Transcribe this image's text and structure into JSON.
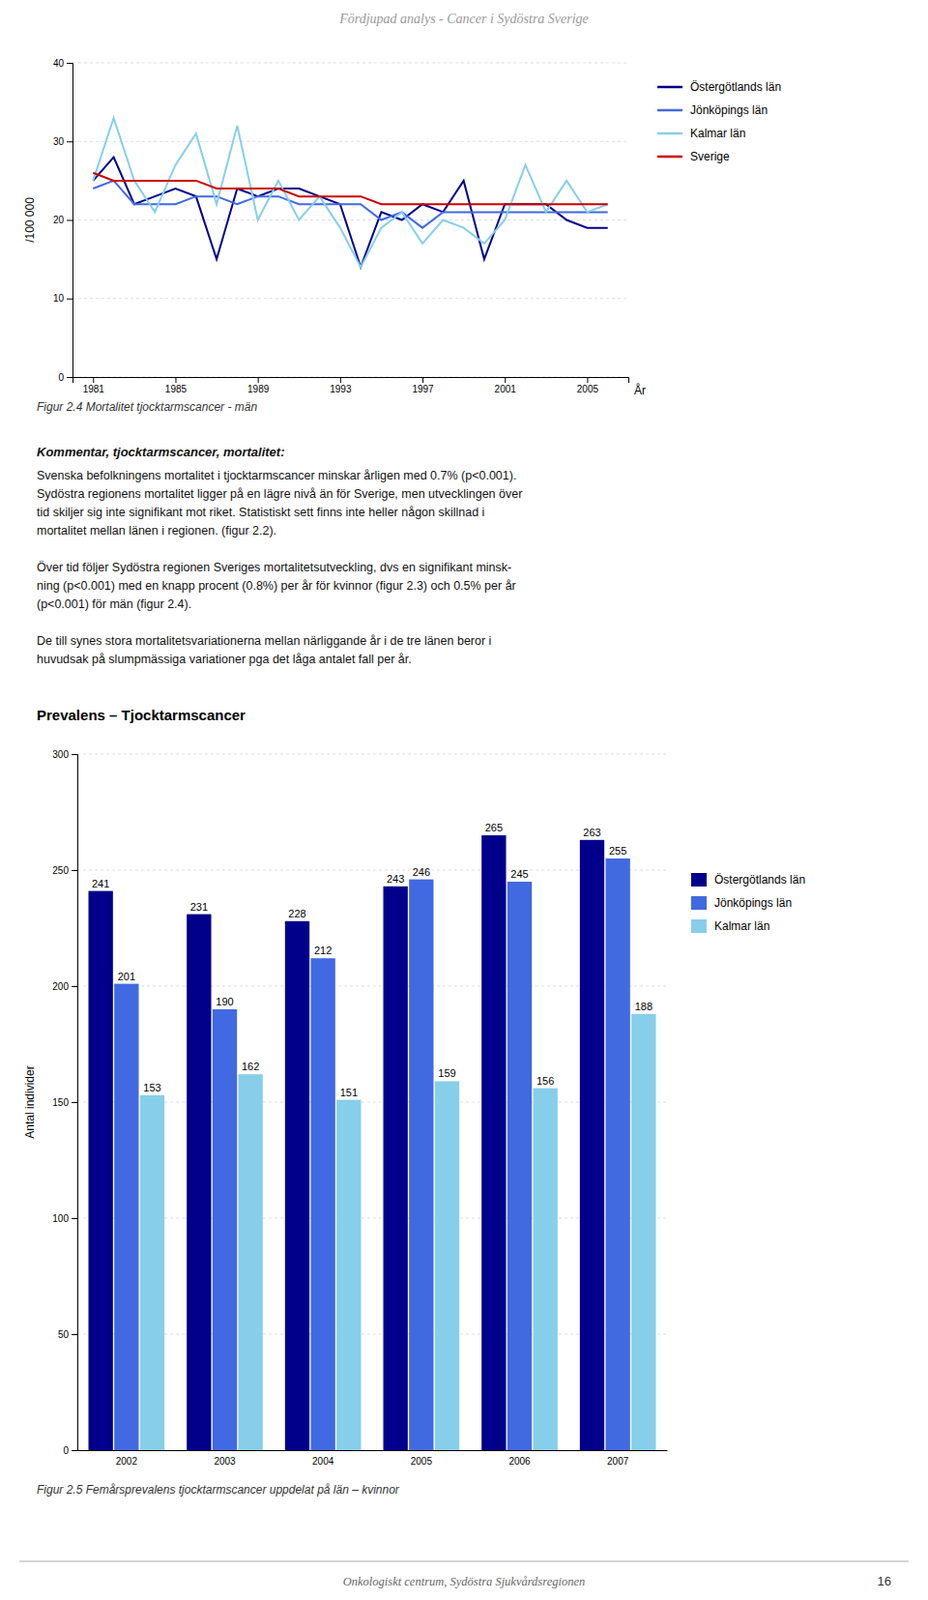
{
  "header": "Fördjupad analys - Cancer i Sydöstra Sverige",
  "footer": "Onkologiskt centrum, Sydöstra Sjukvårdsregionen",
  "page_number": "16",
  "text_block": {
    "heading": "Kommentar, tjocktarmscancer, mortalitet:",
    "paragraphs": [
      [
        "Svenska befolkningens mortalitet i tjocktarmscancer minskar årligen med 0.7% (p<0.001).",
        "Sydöstra regionens mortalitet ligger på en lägre nivå än för Sverige, men utvecklingen över",
        "tid skiljer sig inte signifikant mot riket. Statistiskt sett finns inte heller någon skillnad i",
        "mortalitet mellan länen i regionen. (figur 2.2)."
      ],
      [
        "Över tid följer Sydöstra regionen Sveriges mortalitetsutveckling, dvs en signifikant minsk-",
        "ning (p<0.001) med en knapp procent (0.8%) per år för kvinnor (figur 2.3) och 0.5% per år",
        "(p<0.001) för män (figur 2.4)."
      ],
      [
        "De till synes stora mortalitetsvariationerna mellan närliggande år i de tre länen beror i",
        "huvudsak på slumpmässiga variationer pga det låga antalet fall per år."
      ]
    ]
  },
  "chart_data": [
    {
      "type": "line",
      "caption": "Figur 2.4 Mortalitet tjocktarmscancer - män",
      "x_label": "År",
      "y_label": "/100 000",
      "x": [
        1981,
        1982,
        1983,
        1984,
        1985,
        1986,
        1987,
        1988,
        1989,
        1990,
        1991,
        1992,
        1993,
        1994,
        1995,
        1996,
        1997,
        1998,
        1999,
        2000,
        2001,
        2002,
        2003,
        2004,
        2005,
        2006
      ],
      "series": [
        {
          "name": "Östergötlands län",
          "color": "#00008B",
          "values": [
            25,
            28,
            22,
            23,
            24,
            23,
            15,
            24,
            23,
            24,
            24,
            23,
            22,
            14,
            21,
            20,
            22,
            21,
            25,
            15,
            22,
            22,
            22,
            20,
            19,
            19
          ]
        },
        {
          "name": "Jönköpings län",
          "color": "#4169E1",
          "values": [
            24,
            25,
            22,
            22,
            22,
            23,
            23,
            22,
            23,
            23,
            22,
            22,
            22,
            22,
            20,
            21,
            19,
            21,
            21,
            21,
            21,
            21,
            21,
            21,
            21,
            21
          ]
        },
        {
          "name": "Kalmar län",
          "color": "#87CEEB",
          "values": [
            25,
            33,
            25,
            21,
            27,
            31,
            22,
            32,
            20,
            25,
            20,
            23,
            19,
            14,
            19,
            21,
            17,
            20,
            19,
            17,
            20,
            27,
            21,
            25,
            21,
            22
          ]
        },
        {
          "name": "Sverige",
          "color": "#CC0000",
          "values": [
            26,
            25,
            25,
            25,
            25,
            25,
            24,
            24,
            24,
            24,
            23,
            23,
            23,
            23,
            22,
            22,
            22,
            22,
            22,
            22,
            22,
            22,
            22,
            22,
            22,
            22
          ]
        }
      ],
      "xlim": [
        1980,
        2007
      ],
      "xticks": [
        1981,
        1985,
        1989,
        1993,
        1997,
        2001,
        2005
      ],
      "ylim": [
        0,
        40
      ],
      "yticks": [
        0,
        10,
        20,
        30,
        40
      ],
      "grid": true,
      "legend": "right"
    },
    {
      "type": "bar",
      "title": "Prevalens – Tjocktarmscancer",
      "caption": "Figur 2.5 Femårsprevalens tjocktarmscancer uppdelat på län – kvinnor",
      "y_label": "Antal individer",
      "categories": [
        "2002",
        "2003",
        "2004",
        "2005",
        "2006",
        "2007"
      ],
      "series": [
        {
          "name": "Östergötlands län",
          "color": "#00008B",
          "values": [
            241,
            231,
            228,
            243,
            265,
            263
          ]
        },
        {
          "name": "Jönköpings län",
          "color": "#4169E1",
          "values": [
            201,
            190,
            212,
            246,
            245,
            255
          ]
        },
        {
          "name": "Kalmar län",
          "color": "#87CEEB",
          "values": [
            153,
            162,
            151,
            159,
            156,
            188
          ]
        }
      ],
      "ylim": [
        0,
        300
      ],
      "yticks": [
        0,
        50,
        100,
        150,
        200,
        250,
        300
      ],
      "grid": true,
      "legend": "right",
      "data_labels": true
    }
  ]
}
